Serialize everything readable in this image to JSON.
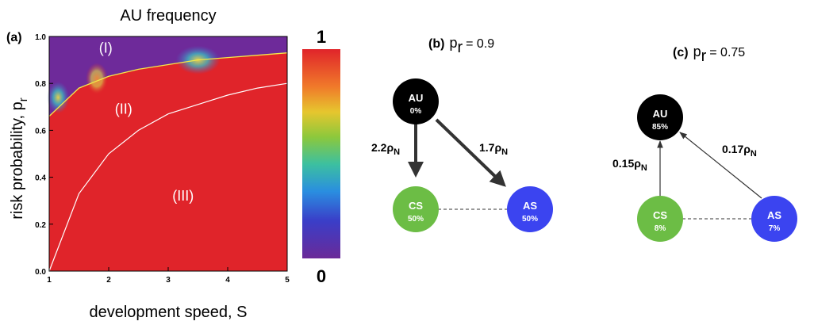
{
  "figure": {
    "panel_a": {
      "label": "(a)",
      "title": "AU frequency",
      "xlabel": "development speed, S",
      "ylabel": "risk probability, p",
      "ylabel_sub": "r",
      "xticks": [
        "1",
        "2",
        "3",
        "4",
        "5"
      ],
      "yticks": [
        "0.0",
        "0.2",
        "0.4",
        "0.6",
        "0.8",
        "1.0"
      ],
      "colorbar_max": "1",
      "colorbar_min": "0",
      "regions": [
        "(I)",
        "(II)",
        "(III)"
      ]
    },
    "panel_b": {
      "label": "(b)",
      "param_p": "p",
      "param_sub": "r",
      "param_value": "= 0.9",
      "nodes": [
        {
          "name": "AU",
          "pct": "0%"
        },
        {
          "name": "CS",
          "pct": "50%"
        },
        {
          "name": "AS",
          "pct": "50%"
        }
      ],
      "edges": [
        {
          "coef": "2.2ρ",
          "sub": "N"
        },
        {
          "coef": "1.7ρ",
          "sub": "N"
        }
      ]
    },
    "panel_c": {
      "label": "(c)",
      "param_p": "p",
      "param_sub": "r",
      "param_value": "= 0.75",
      "nodes": [
        {
          "name": "AU",
          "pct": "85%"
        },
        {
          "name": "CS",
          "pct": "8%"
        },
        {
          "name": "AS",
          "pct": "7%"
        }
      ],
      "edges": [
        {
          "coef": "0.15ρ",
          "sub": "N"
        },
        {
          "coef": "0.17ρ",
          "sub": "N"
        }
      ]
    },
    "colors": {
      "region_high": "#e0242a",
      "region_low": "#6e2a9a",
      "curve_upper": "#f2e84a",
      "curve_lower": "#ffffff",
      "node_au": "#000000",
      "node_cs": "#6cbd45",
      "node_as": "#3b44f0"
    }
  },
  "chart_data": {
    "type": "heatmap",
    "title": "AU frequency",
    "xlabel": "development speed, S",
    "ylabel": "risk probability, p_r",
    "xlim": [
      1,
      5
    ],
    "ylim": [
      0,
      1
    ],
    "colorbar_range": [
      0,
      1
    ],
    "region_labels": [
      "(I)",
      "(II)",
      "(III)"
    ],
    "boundary_upper": {
      "x": [
        1.0,
        1.5,
        2.0,
        2.5,
        3.0,
        3.5,
        4.0,
        4.5,
        5.0
      ],
      "y": [
        0.66,
        0.78,
        0.83,
        0.86,
        0.88,
        0.9,
        0.91,
        0.92,
        0.93
      ]
    },
    "boundary_lower": {
      "x": [
        1.0,
        1.5,
        2.0,
        2.5,
        3.0,
        3.5,
        4.0,
        4.5,
        5.0
      ],
      "y": [
        0.0,
        0.33,
        0.5,
        0.6,
        0.67,
        0.71,
        0.75,
        0.78,
        0.8
      ]
    },
    "heatmap_levels": {
      "region_I": 0,
      "region_II": 1,
      "region_III": 1
    }
  }
}
